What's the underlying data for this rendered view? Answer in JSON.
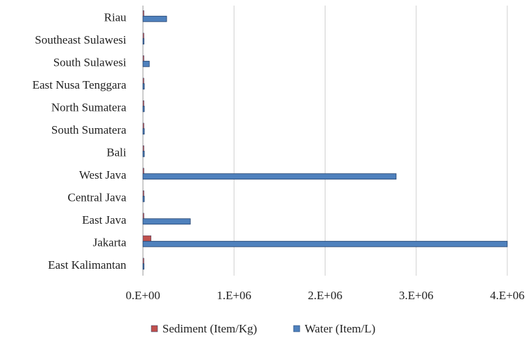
{
  "chart_data": {
    "type": "bar",
    "orientation": "horizontal",
    "categories": [
      "Riau",
      "Southeast Sulawesi",
      "South Sulawesi",
      "East Nusa Tenggara",
      "North Sumatera",
      "South Sumatera",
      "Bali",
      "West Java",
      "Central Java",
      "East Java",
      "Jakarta",
      "East Kalimantan"
    ],
    "series": [
      {
        "name": "Sediment (Item/Kg)",
        "color": "#c0504d",
        "values": [
          5000,
          2000,
          3000,
          2000,
          2000,
          2000,
          2000,
          5000,
          2000,
          5000,
          90000,
          2000
        ]
      },
      {
        "name": "Water (Item/L)",
        "color": "#4f81bd",
        "values": [
          260000,
          3000,
          70000,
          15000,
          15000,
          15000,
          15000,
          2780000,
          15000,
          520000,
          4000000,
          3000
        ]
      }
    ],
    "xlim": [
      0,
      4000000
    ],
    "x_ticks": [
      0,
      1000000,
      2000000,
      3000000,
      4000000
    ],
    "x_tick_labels": [
      "0.E+00",
      "1.E+06",
      "2.E+06",
      "3.E+06",
      "4.E+06"
    ],
    "grid": true,
    "legend_position": "bottom"
  }
}
